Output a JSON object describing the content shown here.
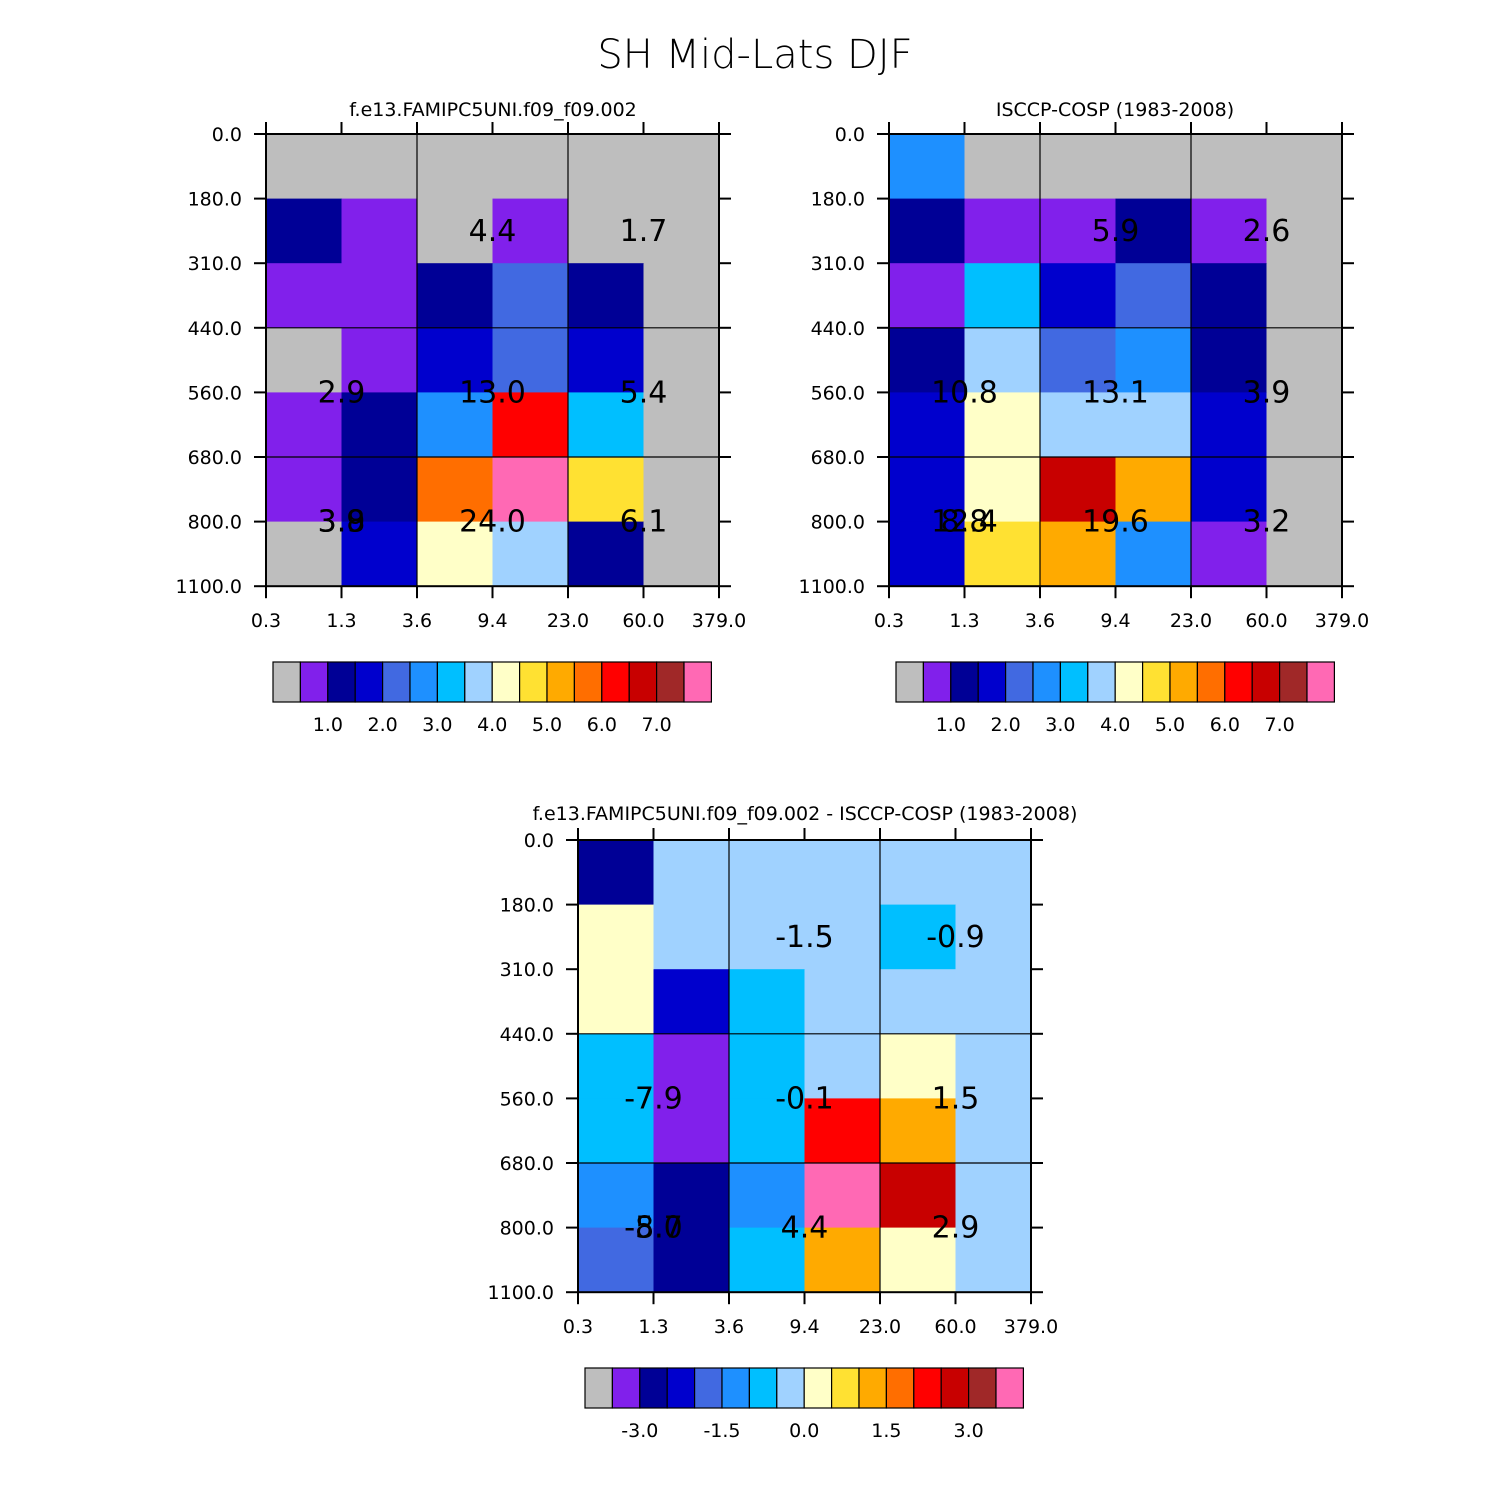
{
  "figure": {
    "title": "SH Mid-Lats DJF"
  },
  "axes": {
    "x_ticks": [
      "0.3",
      "1.3",
      "3.6",
      "9.4",
      "23.0",
      "60.0",
      "379.0"
    ],
    "y_ticks": [
      "0.0",
      "180.0",
      "310.0",
      "440.0",
      "560.0",
      "680.0",
      "800.0",
      "1100.0"
    ]
  },
  "palette": [
    "#BEBEBE",
    "#8120EB",
    "#000096",
    "#0000CD",
    "#4169E1",
    "#1E90FF",
    "#00BFFF",
    "#A0D2FF",
    "#FFFFC8",
    "#FFE132",
    "#FFAA00",
    "#FF6E00",
    "#FF0000",
    "#C80000",
    "#A02828",
    "#FF69B4"
  ],
  "chart_data": [
    {
      "type": "heatmap",
      "title": "f.e13.FAMIPC5UNI.f09_f09.002",
      "colorbar": {
        "labels": [
          "1.0",
          "2.0",
          "3.0",
          "4.0",
          "5.0",
          "6.0",
          "7.0"
        ]
      },
      "cells": [
        [
          0,
          0,
          0,
          0,
          0,
          0
        ],
        [
          2,
          1,
          0,
          1,
          0,
          0
        ],
        [
          1,
          1,
          2,
          4,
          2,
          0
        ],
        [
          0,
          1,
          3,
          4,
          3,
          0
        ],
        [
          1,
          2,
          5,
          12,
          6,
          0
        ],
        [
          1,
          2,
          11,
          15,
          9,
          0
        ],
        [
          0,
          3,
          8,
          7,
          2,
          0
        ]
      ],
      "annotations": [
        "3.9",
        "4.4",
        "1.7",
        "2.9",
        "13.0",
        "5.4",
        "3.8",
        "24.0",
        "6.1"
      ]
    },
    {
      "type": "heatmap",
      "title": "ISCCP-COSP (1983-2008)",
      "colorbar": {
        "labels": [
          "1.0",
          "2.0",
          "3.0",
          "4.0",
          "5.0",
          "6.0",
          "7.0"
        ]
      },
      "cells": [
        [
          5,
          0,
          0,
          0,
          0,
          0
        ],
        [
          2,
          1,
          1,
          2,
          1,
          0
        ],
        [
          1,
          6,
          3,
          4,
          2,
          0
        ],
        [
          2,
          7,
          4,
          5,
          2,
          0
        ],
        [
          3,
          8,
          7,
          7,
          3,
          0
        ],
        [
          3,
          8,
          13,
          10,
          3,
          0
        ],
        [
          3,
          9,
          10,
          5,
          1,
          0
        ]
      ],
      "annotations": [
        "8.8",
        "5.9",
        "2.6",
        "10.8",
        "13.1",
        "3.9",
        "12.4",
        "19.6",
        "3.2"
      ]
    },
    {
      "type": "heatmap",
      "title": "f.e13.FAMIPC5UNI.f09_f09.002 - ISCCP-COSP (1983-2008)",
      "colorbar": {
        "labels": [
          "-3.0",
          "-1.5",
          "0.0",
          "1.5",
          "3.0"
        ]
      },
      "cells": [
        [
          2,
          7,
          7,
          7,
          7,
          7
        ],
        [
          8,
          7,
          7,
          7,
          6,
          7
        ],
        [
          8,
          3,
          6,
          7,
          7,
          7
        ],
        [
          6,
          1,
          6,
          7,
          8,
          7
        ],
        [
          6,
          1,
          6,
          12,
          10,
          7
        ],
        [
          5,
          2,
          5,
          15,
          13,
          7
        ],
        [
          4,
          2,
          6,
          10,
          8,
          7
        ]
      ],
      "annotations": [
        "-5.0",
        "-1.5",
        "-0.9",
        "-7.9",
        "-0.1",
        "1.5",
        "-8.7",
        "4.4",
        "2.9"
      ]
    }
  ]
}
